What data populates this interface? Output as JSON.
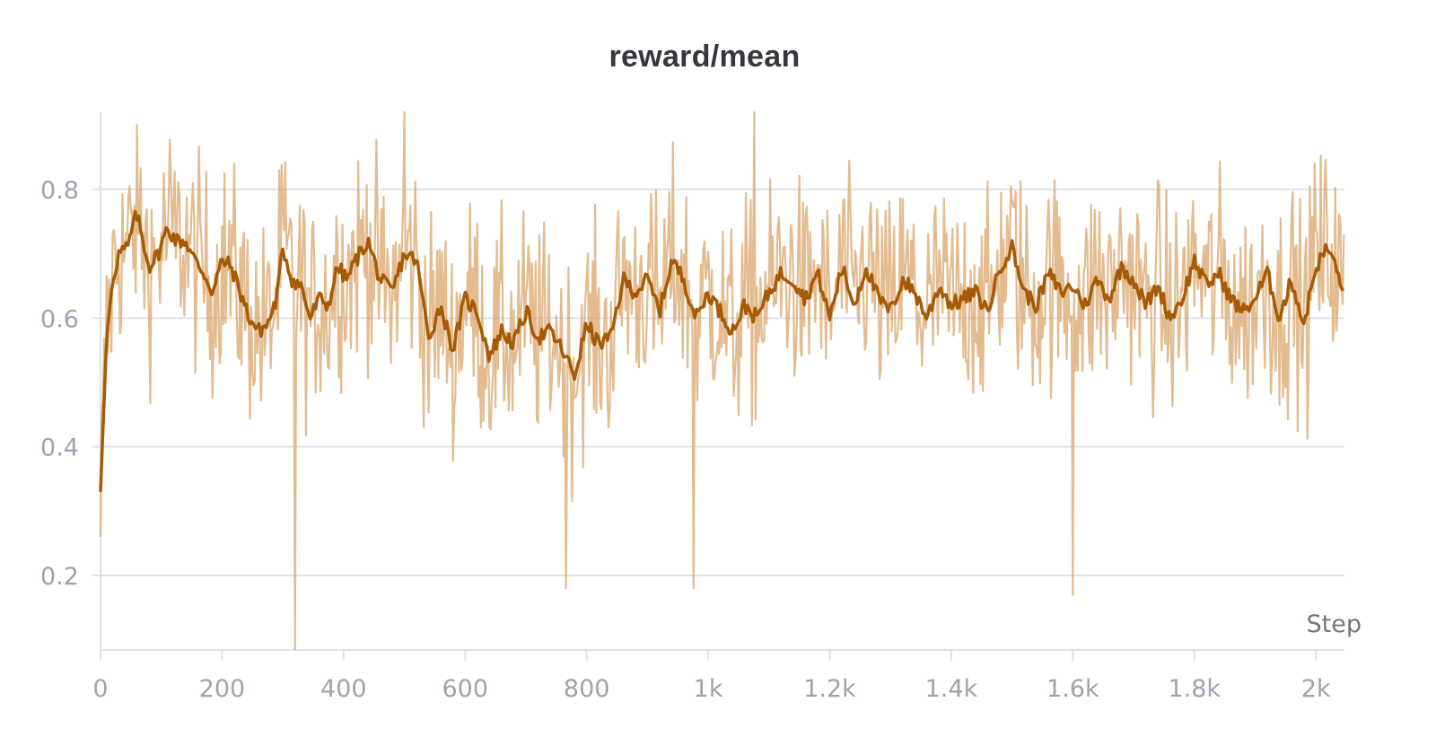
{
  "panel": {
    "title": "reward/mean"
  },
  "chart_data": {
    "type": "line",
    "title": "reward/mean",
    "xlabel": "Step",
    "ylabel": "",
    "xlim": [
      0,
      2047
    ],
    "ylim": [
      0.084,
      0.92
    ],
    "grid": {
      "horizontal": true,
      "vertical": false
    },
    "legend": null,
    "x_ticks": [
      {
        "value": 0,
        "label": "0"
      },
      {
        "value": 200,
        "label": "200"
      },
      {
        "value": 400,
        "label": "400"
      },
      {
        "value": 600,
        "label": "600"
      },
      {
        "value": 800,
        "label": "800"
      },
      {
        "value": 1000,
        "label": "1k"
      },
      {
        "value": 1200,
        "label": "1.2k"
      },
      {
        "value": 1400,
        "label": "1.4k"
      },
      {
        "value": 1600,
        "label": "1.6k"
      },
      {
        "value": 1800,
        "label": "1.8k"
      },
      {
        "value": 2000,
        "label": "2k"
      }
    ],
    "y_ticks": [
      {
        "value": 0.2,
        "label": "0.2"
      },
      {
        "value": 0.4,
        "label": "0.4"
      },
      {
        "value": 0.6,
        "label": "0.6"
      },
      {
        "value": 0.8,
        "label": "0.8"
      }
    ],
    "colors": {
      "smoothed": "#a65a04",
      "raw": "#d9a46a",
      "grid": "#dde3ec",
      "axis": "#dde3ec"
    },
    "series": [
      {
        "name": "reward/mean (smoothed)",
        "x": [
          0,
          5,
          10,
          20,
          30,
          45,
          55,
          60,
          70,
          80,
          95,
          110,
          125,
          140,
          155,
          170,
          185,
          200,
          215,
          230,
          245,
          260,
          275,
          290,
          300,
          315,
          330,
          345,
          360,
          375,
          390,
          405,
          420,
          440,
          460,
          480,
          500,
          520,
          540,
          560,
          580,
          600,
          620,
          640,
          660,
          680,
          700,
          720,
          740,
          760,
          780,
          800,
          820,
          840,
          860,
          880,
          900,
          920,
          940,
          960,
          980,
          1000,
          1020,
          1040,
          1060,
          1080,
          1100,
          1120,
          1140,
          1160,
          1180,
          1200,
          1220,
          1240,
          1260,
          1280,
          1300,
          1320,
          1340,
          1360,
          1380,
          1400,
          1420,
          1440,
          1460,
          1480,
          1500,
          1520,
          1540,
          1560,
          1580,
          1600,
          1620,
          1640,
          1660,
          1680,
          1700,
          1720,
          1740,
          1760,
          1780,
          1800,
          1820,
          1840,
          1860,
          1880,
          1900,
          1920,
          1940,
          1960,
          1980,
          2000,
          2020,
          2040,
          2047
        ],
        "values": [
          0.33,
          0.45,
          0.57,
          0.66,
          0.7,
          0.71,
          0.75,
          0.76,
          0.72,
          0.68,
          0.7,
          0.74,
          0.72,
          0.72,
          0.69,
          0.67,
          0.64,
          0.69,
          0.68,
          0.64,
          0.6,
          0.58,
          0.59,
          0.63,
          0.71,
          0.66,
          0.65,
          0.6,
          0.63,
          0.62,
          0.68,
          0.66,
          0.69,
          0.72,
          0.66,
          0.64,
          0.7,
          0.69,
          0.57,
          0.62,
          0.55,
          0.63,
          0.61,
          0.54,
          0.58,
          0.56,
          0.61,
          0.57,
          0.58,
          0.55,
          0.51,
          0.59,
          0.56,
          0.57,
          0.66,
          0.64,
          0.66,
          0.61,
          0.69,
          0.66,
          0.6,
          0.64,
          0.61,
          0.58,
          0.62,
          0.6,
          0.64,
          0.67,
          0.66,
          0.63,
          0.67,
          0.6,
          0.68,
          0.62,
          0.68,
          0.63,
          0.61,
          0.66,
          0.64,
          0.6,
          0.65,
          0.62,
          0.63,
          0.64,
          0.61,
          0.68,
          0.71,
          0.64,
          0.62,
          0.67,
          0.64,
          0.65,
          0.62,
          0.66,
          0.63,
          0.68,
          0.66,
          0.62,
          0.65,
          0.6,
          0.63,
          0.69,
          0.65,
          0.67,
          0.63,
          0.61,
          0.63,
          0.67,
          0.6,
          0.66,
          0.59,
          0.68,
          0.71,
          0.66,
          0.63
        ]
      },
      {
        "name": "reward/mean (raw)",
        "description": "high-variance raw per-step values oscillating around the smoothed line, mostly within 0.35–0.88",
        "noise_amplitude": 0.17,
        "notable_points": [
          {
            "x": 0,
            "y": 0.26
          },
          {
            "x": 320,
            "y": 0.085
          },
          {
            "x": 500,
            "y": 0.92
          },
          {
            "x": 765,
            "y": 0.18
          },
          {
            "x": 975,
            "y": 0.18
          },
          {
            "x": 1075,
            "y": 0.92
          },
          {
            "x": 1600,
            "y": 0.17
          },
          {
            "x": 1998,
            "y": 0.84
          }
        ]
      }
    ]
  }
}
